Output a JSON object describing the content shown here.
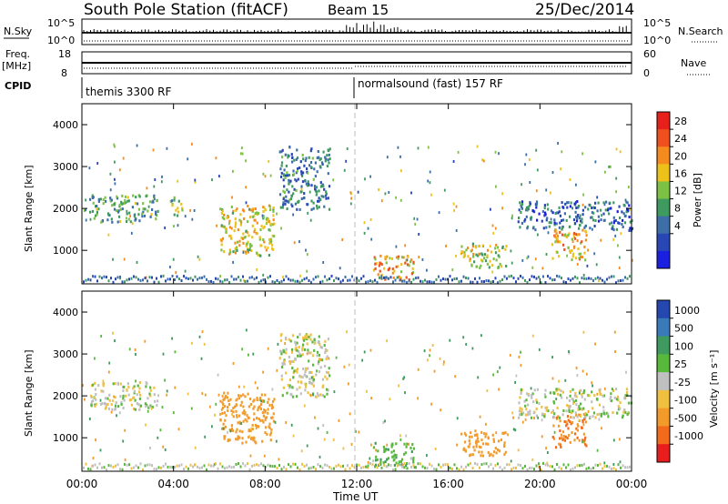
{
  "header": {
    "title": "South Pole Station (fitACF)",
    "beam": "Beam 15",
    "date": "25/Dec/2014"
  },
  "panels": {
    "nsky_label": "N.Sky",
    "nsky_top": "10^5",
    "nsky_bottom": "10^0",
    "nsearch_label": "N.Search",
    "freq_label": "Freq.",
    "freq_unit": "[MHz]",
    "freq_top": "18",
    "freq_bottom": "8",
    "nave_label": "Nave",
    "nave_top": "60",
    "nave_bottom": "0",
    "cpid_label": "CPID",
    "cpid_first": "themis 3300 RF",
    "cpid_second": "normalsound (fast) 157 RF"
  },
  "power_colorbar": {
    "label": "Power [dB]",
    "ticks": [
      "28",
      "24",
      "20",
      "16",
      "12",
      "8",
      "4"
    ],
    "colors": [
      "#e8201c",
      "#f0501e",
      "#f58a1e",
      "#ecc21a",
      "#7cc044",
      "#3f9a5f",
      "#3d6ea7",
      "#2847b5",
      "#1a1fe0"
    ]
  },
  "velocity_colorbar": {
    "label": "Velocity [m s⁻¹]",
    "ticks": [
      "1000",
      "500",
      "100",
      "25",
      "-25",
      "-100",
      "-500",
      "-1000"
    ],
    "colors": [
      "#2448b0",
      "#3b7ab8",
      "#3f9a5f",
      "#57b83c",
      "#c0c0c0",
      "#f0c040",
      "#f29a2a",
      "#f26a1a",
      "#e81e1e"
    ]
  },
  "chart_data": [
    {
      "type": "heatmap",
      "title": "Power",
      "xlabel": "",
      "ylabel": "Slant Range [km]",
      "x_ticks": [
        "00:00",
        "04:00",
        "08:00",
        "12:00",
        "16:00",
        "20:00",
        "00:00"
      ],
      "y_ticks": [
        "1000",
        "2000",
        "3000",
        "4000"
      ],
      "ylim": [
        200,
        4500
      ],
      "xlim_hours": [
        0,
        24
      ],
      "regions": [
        {
          "t0": 0.3,
          "t1": 3.3,
          "r0": 1700,
          "r1": 2350,
          "level": 12
        },
        {
          "t0": 3.8,
          "t1": 4.4,
          "r0": 1850,
          "r1": 2300,
          "level": 14
        },
        {
          "t0": 6.0,
          "t1": 8.4,
          "r0": 900,
          "r1": 2100,
          "level": 18
        },
        {
          "t0": 8.6,
          "t1": 10.8,
          "r0": 2000,
          "r1": 3500,
          "level": 8
        },
        {
          "t0": 12.7,
          "t1": 14.5,
          "r0": 300,
          "r1": 900,
          "level": 22
        },
        {
          "t0": 16.5,
          "t1": 18.5,
          "r0": 600,
          "r1": 1200,
          "level": 16
        },
        {
          "t0": 20.5,
          "t1": 22.0,
          "r0": 800,
          "r1": 1600,
          "level": 20
        },
        {
          "t0": 19.0,
          "t1": 24.0,
          "r0": 1500,
          "r1": 2200,
          "level": 6
        }
      ]
    },
    {
      "type": "heatmap",
      "title": "Velocity",
      "xlabel": "Time UT",
      "ylabel": "Slant Range [km]",
      "x_ticks": [
        "00:00",
        "04:00",
        "08:00",
        "12:00",
        "16:00",
        "20:00",
        "00:00"
      ],
      "y_ticks": [
        "1000",
        "2000",
        "3000",
        "4000"
      ],
      "ylim": [
        200,
        4500
      ],
      "xlim_hours": [
        0,
        24
      ],
      "regions": [
        {
          "t0": 0.3,
          "t1": 3.3,
          "r0": 1700,
          "r1": 2350,
          "level": 0
        },
        {
          "t0": 6.0,
          "t1": 8.4,
          "r0": 900,
          "r1": 2100,
          "level": -300
        },
        {
          "t0": 8.6,
          "t1": 10.8,
          "r0": 2000,
          "r1": 3500,
          "level": 0
        },
        {
          "t0": 12.7,
          "t1": 14.5,
          "r0": 300,
          "r1": 900,
          "level": 80
        },
        {
          "t0": 16.5,
          "t1": 18.5,
          "r0": 600,
          "r1": 1200,
          "level": -300
        },
        {
          "t0": 20.5,
          "t1": 22.0,
          "r0": 800,
          "r1": 1600,
          "level": -500
        },
        {
          "t0": 19.0,
          "t1": 24.0,
          "r0": 1500,
          "r1": 2200,
          "level": 0
        }
      ]
    }
  ]
}
